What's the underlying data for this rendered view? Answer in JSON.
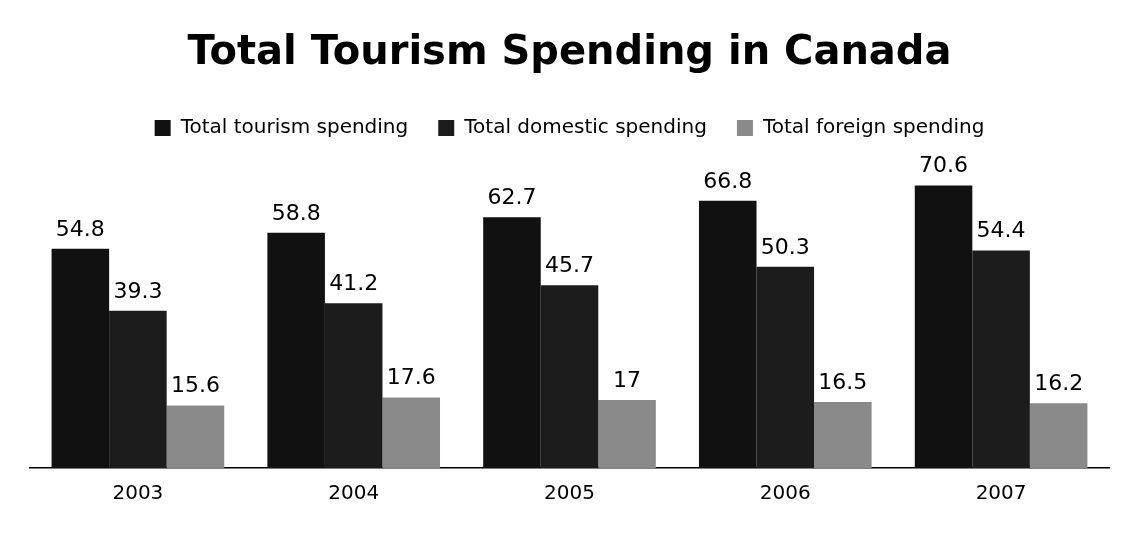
{
  "chart_data": {
    "type": "bar",
    "title": "Total Tourism Spending in Canada",
    "categories": [
      "2003",
      "2004",
      "2005",
      "2006",
      "2007"
    ],
    "series": [
      {
        "name": "Total tourism spending",
        "color": "#111111",
        "values": [
          54.8,
          58.8,
          62.7,
          66.8,
          70.6
        ]
      },
      {
        "name": "Total domestic spending",
        "color": "#1c1c1c",
        "values": [
          39.3,
          41.2,
          45.7,
          50.3,
          54.4
        ]
      },
      {
        "name": "Total foreign spending",
        "color": "#8a8a8a",
        "values": [
          15.6,
          17.6,
          17,
          16.5,
          16.2
        ]
      }
    ],
    "data_labels": true,
    "legend": "top",
    "grid": false
  }
}
